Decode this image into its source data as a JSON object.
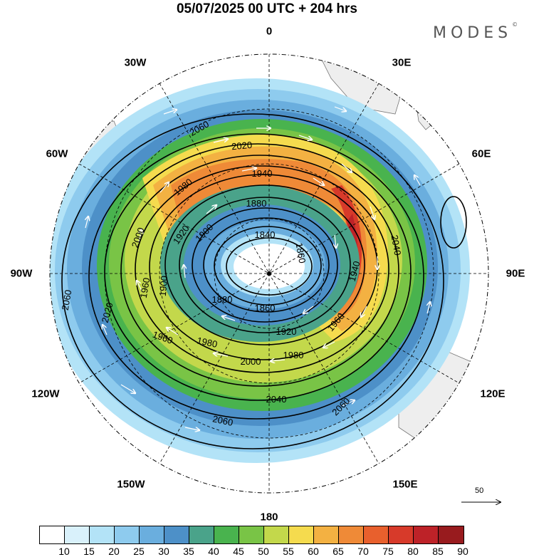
{
  "title": "05/07/2025  00 UTC  + 204 hrs",
  "brand": {
    "text": "MODES",
    "mark": "©"
  },
  "longitude_labels": {
    "n": "0",
    "e30": "30E",
    "e60": "60E",
    "e90": "90E",
    "e120": "120E",
    "e150": "150E",
    "s": "180",
    "w150": "150W",
    "w120": "120W",
    "w90": "90W",
    "w60": "60W",
    "w30": "30W"
  },
  "contour_labels": [
    "2060",
    "2060",
    "2060",
    "2060",
    "2040",
    "2040",
    "2020",
    "2020",
    "2000",
    "2000",
    "1980",
    "1980",
    "1980",
    "1960",
    "1960",
    "1960",
    "1940",
    "1940",
    "1920",
    "1920",
    "1900",
    "1900",
    "1880",
    "1880",
    "1860",
    "1860",
    "1840"
  ],
  "reference_vector": {
    "label": "50"
  },
  "colorbar": {
    "ticks": [
      "10",
      "15",
      "20",
      "25",
      "30",
      "35",
      "40",
      "45",
      "50",
      "55",
      "60",
      "65",
      "70",
      "75",
      "80",
      "85",
      "90"
    ],
    "colors": [
      "#ffffff",
      "#d9f1fb",
      "#b3e3f7",
      "#8ecbee",
      "#6aaede",
      "#4d90c8",
      "#4aa38a",
      "#49b34e",
      "#79c446",
      "#c3d84b",
      "#f5db4e",
      "#f3b142",
      "#ef8a37",
      "#e8602d",
      "#d73a2a",
      "#bd2228",
      "#981b1e"
    ]
  },
  "map_projection": "polar stereographic (southern hemisphere)"
}
